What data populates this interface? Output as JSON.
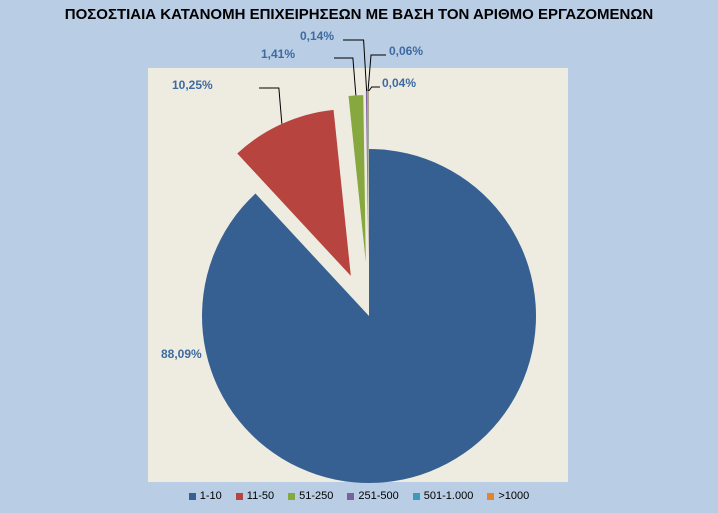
{
  "chart_data": {
    "type": "pie",
    "title": "ΠΟΣΟΣΤΙΑΙΑ ΚΑΤΑΝΟΜΗ ΕΠΙΧΕΙΡΗΣΕΩΝ ΜΕ ΒΑΣΗ ΤΟΝ ΑΡΙΘΜΟ ΕΡΓΑΖΟΜΕΝΩΝ",
    "categories": [
      "1-10",
      "11-50",
      "51-250",
      "251-500",
      "501-1.000",
      ">1000"
    ],
    "values": [
      88.09,
      10.25,
      1.41,
      0.14,
      0.06,
      0.04
    ],
    "data_labels": [
      "88,09%",
      "10,25%",
      "1,41%",
      "0,14%",
      "0,06%",
      "0,04%"
    ],
    "colors": [
      "#376092",
      "#b7443e",
      "#86a83f",
      "#7b61a0",
      "#3c9bbb",
      "#e6832d"
    ],
    "label_color": "#3d6aa0",
    "legend_position": "bottom",
    "exploded": true
  }
}
